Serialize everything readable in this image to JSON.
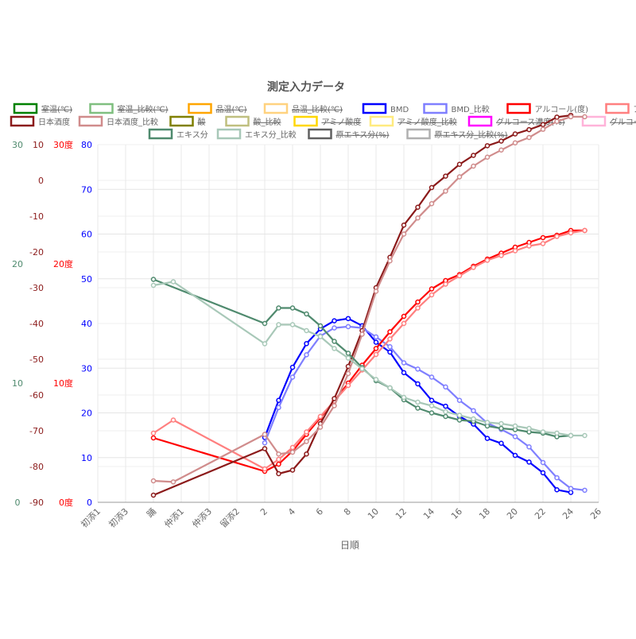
{
  "chart_data": {
    "type": "line",
    "title": "測定入力データ",
    "xlabel": "日順",
    "x_categories": [
      "初添1",
      "初添3",
      "踊",
      "仲添1",
      "仲添3",
      "留添2",
      "2",
      "4",
      "6",
      "8",
      "10",
      "12",
      "14",
      "16",
      "18",
      "20",
      "22",
      "24",
      "26"
    ],
    "legend": [
      {
        "label": "室温(℃)",
        "color": "#008000",
        "hidden": true
      },
      {
        "label": "室温_比較(℃)",
        "color": "#7fbf7f",
        "hidden": true
      },
      {
        "label": "品温(℃)",
        "color": "#ffa500",
        "hidden": true
      },
      {
        "label": "品温_比較(℃)",
        "color": "#ffd27f",
        "hidden": true
      },
      {
        "label": "BMD",
        "color": "#0000ff",
        "hidden": false
      },
      {
        "label": "BMD_比較",
        "color": "#7f7fff",
        "hidden": false
      },
      {
        "label": "アルコール(度)",
        "color": "#ff0000",
        "hidden": false
      },
      {
        "label": "アルコール_比較(度)",
        "color": "#ff7f7f",
        "hidden": false
      },
      {
        "label": "日本酒度",
        "color": "#8b1a1a",
        "hidden": false
      },
      {
        "label": "日本酒度_比較",
        "color": "#d08c8c",
        "hidden": false
      },
      {
        "label": "酸",
        "color": "#808000",
        "hidden": true
      },
      {
        "label": "酸_比較",
        "color": "#bfbf7f",
        "hidden": true
      },
      {
        "label": "アミノ酸度",
        "color": "#ffd700",
        "hidden": true
      },
      {
        "label": "アミノ酸度_比較",
        "color": "#ffeb7f",
        "hidden": true
      },
      {
        "label": "グルコース濃度(%)",
        "color": "#ff00ff",
        "hidden": true
      },
      {
        "label": "グルコース濃度_比較(%)",
        "color": "#ffb3d9",
        "hidden": true
      },
      {
        "label": "エキス分",
        "color": "#4f8a6e",
        "hidden": false
      },
      {
        "label": "エキス分_比較",
        "color": "#a8c8b8",
        "hidden": false
      },
      {
        "label": "原エキス分(%)",
        "color": "#606060",
        "hidden": true
      },
      {
        "label": "原エキス分_比較(%)",
        "color": "#b0b0b0",
        "hidden": true
      }
    ],
    "axes": {
      "extract": {
        "color": "#4f8a6e",
        "min": 0,
        "max": 30,
        "ticks": [
          "0",
          "10",
          "20",
          "30"
        ]
      },
      "nihonshudo": {
        "color": "#8b1a1a",
        "min": -90,
        "max": 10,
        "ticks": [
          "-90",
          "-80",
          "-70",
          "-60",
          "-50",
          "-40",
          "-30",
          "-20",
          "-10",
          "0",
          "10"
        ]
      },
      "alcohol": {
        "color": "#ff0000",
        "min": 0,
        "max": 30,
        "ticks": [
          "0度",
          "10度",
          "20度",
          "30度"
        ]
      },
      "bmd": {
        "color": "#0000ff",
        "min": 0,
        "max": 80,
        "ticks": [
          "0",
          "10",
          "20",
          "30",
          "40",
          "50",
          "60",
          "70",
          "80"
        ]
      }
    },
    "series": [
      {
        "name": "BMD",
        "axis": "bmd",
        "color": "#0000ff",
        "points": [
          [
            2,
            14.5
          ],
          [
            3,
            22.8
          ],
          [
            4,
            30.2
          ],
          [
            5,
            35.5
          ],
          [
            6,
            38.8
          ],
          [
            7,
            40.6
          ],
          [
            8,
            41.1
          ],
          [
            9,
            39.5
          ],
          [
            10,
            35.8
          ],
          [
            11,
            33.6
          ],
          [
            12,
            29
          ],
          [
            13,
            26.5
          ],
          [
            14,
            22.8
          ],
          [
            15,
            21.5
          ],
          [
            16,
            19.2
          ],
          [
            17,
            17.5
          ],
          [
            18,
            14.3
          ],
          [
            19,
            13.2
          ],
          [
            20,
            10.5
          ],
          [
            21,
            9
          ],
          [
            22,
            6.6
          ],
          [
            23,
            2.8
          ],
          [
            24,
            2.2
          ]
        ]
      },
      {
        "name": "BMD_比較",
        "axis": "bmd",
        "color": "#7f7fff",
        "points": [
          [
            2,
            13.3
          ],
          [
            3,
            21.2
          ],
          [
            4,
            28
          ],
          [
            5,
            33
          ],
          [
            6,
            37.2
          ],
          [
            7,
            39
          ],
          [
            8,
            39.3
          ],
          [
            9,
            39
          ],
          [
            10,
            37
          ],
          [
            11,
            34.8
          ],
          [
            12,
            31.2
          ],
          [
            13,
            29.8
          ],
          [
            14,
            28
          ],
          [
            15,
            25.8
          ],
          [
            16,
            22.8
          ],
          [
            17,
            20.5
          ],
          [
            18,
            17.7
          ],
          [
            19,
            16.3
          ],
          [
            20,
            14.7
          ],
          [
            21,
            12.4
          ],
          [
            22,
            8.9
          ],
          [
            23,
            5.5
          ],
          [
            24,
            3.1
          ],
          [
            25,
            2.7
          ]
        ]
      },
      {
        "name": "アルコール(度)",
        "axis": "alcohol",
        "color": "#ff0000",
        "points": [
          [
            "踊",
            5.4
          ],
          [
            2,
            2.6
          ],
          [
            3,
            3.2
          ],
          [
            4,
            4.3
          ],
          [
            5,
            5.7
          ],
          [
            6,
            7.1
          ],
          [
            7,
            8.5
          ],
          [
            8,
            10
          ],
          [
            9,
            11.5
          ],
          [
            10,
            12.9
          ],
          [
            11,
            14.3
          ],
          [
            12,
            15.6
          ],
          [
            13,
            16.8
          ],
          [
            14,
            17.9
          ],
          [
            15,
            18.6
          ],
          [
            16,
            19.1
          ],
          [
            17,
            19.8
          ],
          [
            18,
            20.4
          ],
          [
            19,
            20.9
          ],
          [
            20,
            21.4
          ],
          [
            21,
            21.8
          ],
          [
            22,
            22.2
          ],
          [
            23,
            22.4
          ],
          [
            24,
            22.8
          ],
          [
            25,
            22.8
          ]
        ]
      },
      {
        "name": "アルコール_比較(度)",
        "axis": "alcohol",
        "color": "#ff7f7f",
        "points": [
          [
            "踊",
            5.8
          ],
          [
            "踊2",
            6.9
          ],
          [
            2,
            2.8
          ],
          [
            3,
            3.6
          ],
          [
            4,
            4.6
          ],
          [
            5,
            5.9
          ],
          [
            6,
            7.2
          ],
          [
            7,
            8.5
          ],
          [
            8,
            9.8
          ],
          [
            9,
            11.1
          ],
          [
            10,
            12.4
          ],
          [
            11,
            13.7
          ],
          [
            12,
            15
          ],
          [
            13,
            16.3
          ],
          [
            14,
            17.4
          ],
          [
            15,
            18.3
          ],
          [
            16,
            19
          ],
          [
            17,
            19.7
          ],
          [
            18,
            20.3
          ],
          [
            19,
            20.7
          ],
          [
            20,
            21.1
          ],
          [
            21,
            21.5
          ],
          [
            22,
            21.7
          ],
          [
            23,
            22.3
          ],
          [
            24,
            22.6
          ],
          [
            25,
            22.8
          ]
        ]
      },
      {
        "name": "日本酒度",
        "axis": "nihonshudo",
        "color": "#8b1a1a",
        "points": [
          [
            "踊",
            -88
          ],
          [
            2,
            -75
          ],
          [
            3,
            -82
          ],
          [
            4,
            -81
          ],
          [
            5,
            -76.5
          ],
          [
            6,
            -68
          ],
          [
            7,
            -61
          ],
          [
            8,
            -52
          ],
          [
            9,
            -42
          ],
          [
            10,
            -30
          ],
          [
            11,
            -21.5
          ],
          [
            12,
            -12.5
          ],
          [
            13,
            -7.5
          ],
          [
            14,
            -2
          ],
          [
            15,
            1.2
          ],
          [
            16,
            4.5
          ],
          [
            17,
            7
          ],
          [
            18,
            9.7
          ],
          [
            19,
            11
          ],
          [
            20,
            13
          ],
          [
            21,
            14.2
          ],
          [
            22,
            15.6
          ],
          [
            23,
            17.7
          ],
          [
            24,
            18.2
          ]
        ]
      },
      {
        "name": "日本酒度_比較",
        "axis": "nihonshudo",
        "color": "#d08c8c",
        "points": [
          [
            "踊",
            -84
          ],
          [
            "踊2",
            -84.3
          ],
          [
            2,
            -71
          ],
          [
            3,
            -76.5
          ],
          [
            4,
            -76
          ],
          [
            5,
            -73
          ],
          [
            6,
            -69
          ],
          [
            7,
            -63
          ],
          [
            8,
            -54
          ],
          [
            9,
            -43
          ],
          [
            10,
            -31
          ],
          [
            11,
            -22.5
          ],
          [
            12,
            -15
          ],
          [
            13,
            -10.5
          ],
          [
            14,
            -6.5
          ],
          [
            15,
            -3
          ],
          [
            16,
            1
          ],
          [
            17,
            4
          ],
          [
            18,
            6.5
          ],
          [
            19,
            8.5
          ],
          [
            20,
            10.5
          ],
          [
            21,
            12
          ],
          [
            22,
            14.3
          ],
          [
            23,
            16.5
          ],
          [
            24,
            17.8
          ],
          [
            25,
            17.8
          ]
        ]
      },
      {
        "name": "エキス分",
        "axis": "extract",
        "color": "#4f8a6e",
        "points": [
          [
            "踊",
            18.7
          ],
          [
            2,
            15
          ],
          [
            3,
            16.3
          ],
          [
            4,
            16.3
          ],
          [
            5,
            15.8
          ],
          [
            6,
            14.8
          ],
          [
            7,
            13.5
          ],
          [
            8,
            12.5
          ],
          [
            9,
            11.3
          ],
          [
            10,
            10.2
          ],
          [
            11,
            9.6
          ],
          [
            12,
            8.6
          ],
          [
            13,
            7.9
          ],
          [
            14,
            7.5
          ],
          [
            15,
            7.2
          ],
          [
            16,
            6.9
          ],
          [
            17,
            6.8
          ],
          [
            18,
            6.4
          ],
          [
            19,
            6.2
          ],
          [
            20,
            6.1
          ],
          [
            21,
            5.9
          ],
          [
            22,
            5.8
          ],
          [
            23,
            5.5
          ],
          [
            24,
            5.6
          ]
        ]
      },
      {
        "name": "エキス分_比較",
        "axis": "extract",
        "color": "#a8c8b8",
        "points": [
          [
            "踊",
            18.2
          ],
          [
            "踊2",
            18.5
          ],
          [
            2,
            13.3
          ],
          [
            3,
            14.9
          ],
          [
            4,
            14.9
          ],
          [
            5,
            14.4
          ],
          [
            6,
            13.9
          ],
          [
            7,
            12.9
          ],
          [
            8,
            12.1
          ],
          [
            9,
            11.2
          ],
          [
            10,
            10.3
          ],
          [
            11,
            9.6
          ],
          [
            12,
            8.8
          ],
          [
            13,
            8.4
          ],
          [
            14,
            8.1
          ],
          [
            15,
            7.6
          ],
          [
            16,
            7.3
          ],
          [
            17,
            7
          ],
          [
            18,
            6.7
          ],
          [
            19,
            6.6
          ],
          [
            20,
            6.4
          ],
          [
            21,
            6.2
          ],
          [
            22,
            5.9
          ],
          [
            23,
            5.8
          ],
          [
            24,
            5.6
          ],
          [
            25,
            5.6
          ]
        ]
      }
    ]
  }
}
